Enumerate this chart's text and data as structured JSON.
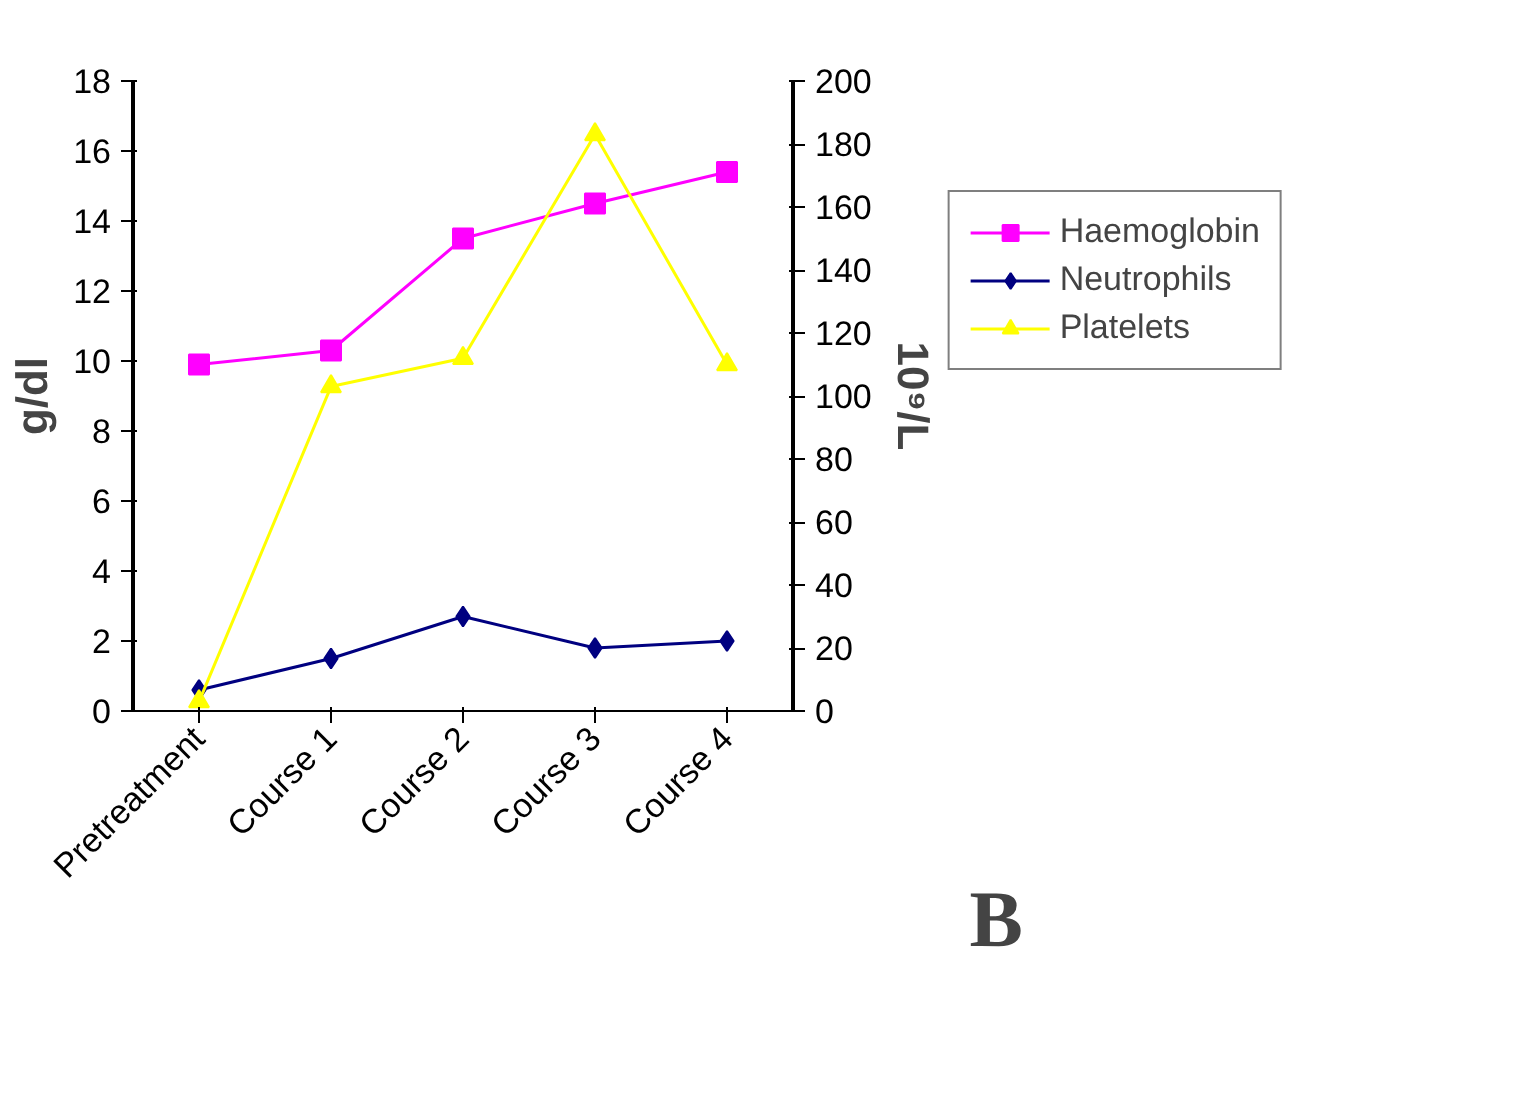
{
  "chart_data": {
    "type": "line",
    "categories": [
      "Pretreatment",
      "Course 1",
      "Course 2",
      "Course 3",
      "Course 4"
    ],
    "ylabel": "g/dl",
    "y2label": "10⁹/L",
    "ylim": [
      0,
      18
    ],
    "yticks": [
      0,
      2,
      4,
      6,
      8,
      10,
      12,
      14,
      16,
      18
    ],
    "y2lim": [
      0,
      200
    ],
    "y2ticks": [
      0,
      20,
      40,
      60,
      80,
      100,
      120,
      140,
      160,
      180,
      200
    ],
    "grid": false,
    "legend": "right",
    "annotations": [
      "B"
    ],
    "series": [
      {
        "name": "Haemoglobin",
        "color": "#ff00ff",
        "marker": "square",
        "values": [
          9.9,
          10.3,
          13.5,
          14.5,
          15.4
        ]
      },
      {
        "name": "Neutrophils",
        "color": "#000080",
        "marker": "diamond",
        "values": [
          0.6,
          1.5,
          2.7,
          1.8,
          2.0
        ]
      },
      {
        "name": "Platelets",
        "color": "#ffff00",
        "marker": "triangle",
        "axis": "y2",
        "values": [
          3,
          103,
          112,
          183,
          110
        ]
      }
    ]
  }
}
